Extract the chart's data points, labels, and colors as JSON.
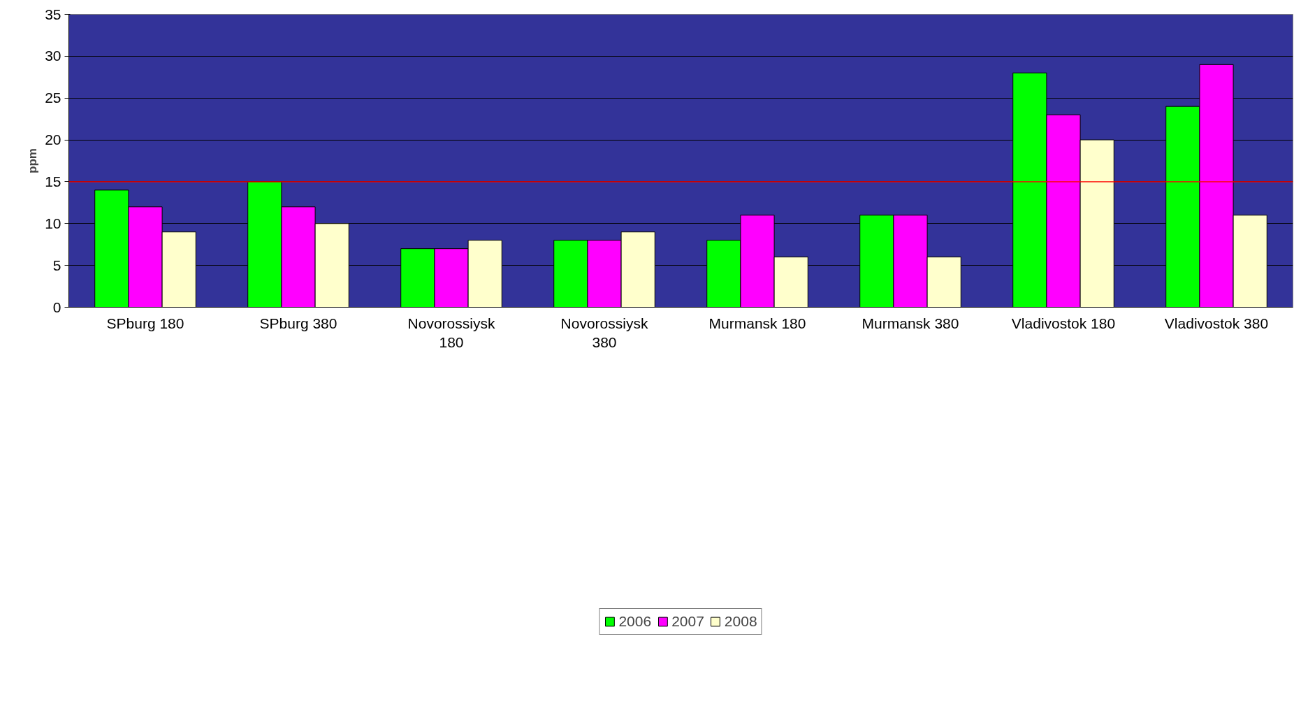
{
  "chart_data": {
    "type": "bar",
    "ylabel": "ppm",
    "categories": [
      "SPburg 180",
      "SPburg 380",
      "Novorossiysk 180",
      "Novorossiysk 380",
      "Murmansk 180",
      "Murmansk 380",
      "Vladivostok 180",
      "Vladivostok 380"
    ],
    "series": [
      {
        "name": "2006",
        "color": "#00ff00",
        "values": [
          14,
          15,
          7,
          8,
          8,
          11,
          28,
          24
        ]
      },
      {
        "name": "2007",
        "color": "#ff00ff",
        "values": [
          12,
          12,
          7,
          8,
          11,
          11,
          23,
          29
        ]
      },
      {
        "name": "2008",
        "color": "#ffffcc",
        "values": [
          9,
          10,
          8,
          9,
          6,
          6,
          20,
          11
        ]
      }
    ],
    "ylim": [
      0,
      35
    ],
    "yticks": [
      0,
      5,
      10,
      15,
      20,
      25,
      30,
      35
    ],
    "ref_lines": [
      {
        "axis": "y",
        "value": 15,
        "color": "#ff0000"
      }
    ],
    "grid": "y",
    "legend": "bottom"
  }
}
